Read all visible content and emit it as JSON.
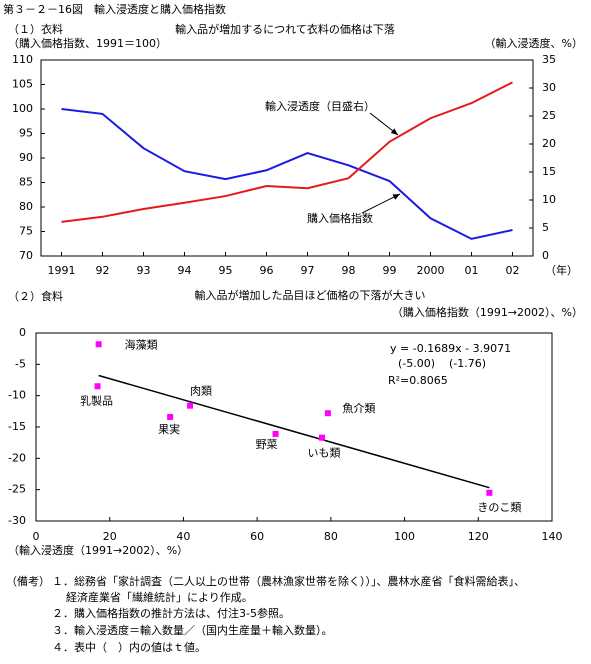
{
  "title": "第３－２－16図　輸入浸透度と購入価格指数",
  "chart_data": [
    {
      "type": "line",
      "title": "（１）衣料",
      "subtitle": "輸入品が増加するにつれて衣料の価格は下落",
      "ylabel": "（購入価格指数、1991＝100）",
      "y2label": "（輸入浸透度、%）",
      "xlabel": "（年）",
      "categories": [
        "1991",
        "92",
        "93",
        "94",
        "95",
        "96",
        "97",
        "98",
        "99",
        "2000",
        "01",
        "02"
      ],
      "ylim": [
        70,
        110
      ],
      "yticks": [
        70,
        75,
        80,
        85,
        90,
        95,
        100,
        105,
        110
      ],
      "y2lim": [
        0,
        35
      ],
      "y2ticks": [
        0,
        5,
        10,
        15,
        20,
        25,
        30,
        35
      ],
      "series": [
        {
          "name": "購入価格指数",
          "color": "#1a1ae6",
          "values": [
            100,
            99,
            92,
            87.3,
            85.7,
            87.5,
            91,
            88.5,
            85.3,
            77.7,
            73.5,
            75.3
          ]
        },
        {
          "name": "輸入浸透度（目盛右）",
          "color": "#e61a1a",
          "axis": "y2",
          "values": [
            6.1,
            7,
            8.4,
            9.5,
            10.7,
            12.5,
            12.1,
            13.9,
            20.4,
            24.6,
            27.3,
            31
          ]
        }
      ]
    },
    {
      "type": "scatter",
      "title": "（２）食料",
      "subtitle": "輸入品が増加した品目ほど価格の下落が大きい",
      "ylabel": "（購入価格指数（1991→2002）、%）",
      "xlabel": "（輸入浸透度（1991→2002）、%）",
      "xlim": [
        0,
        140
      ],
      "xticks": [
        0,
        20,
        40,
        60,
        80,
        100,
        120,
        140
      ],
      "ylim": [
        -30,
        0
      ],
      "yticks": [
        -30,
        -25,
        -20,
        -15,
        -10,
        -5,
        0
      ],
      "color": "#ff00ff",
      "labels": [
        "海藻類",
        "乳製品",
        "肉類",
        "果実",
        "野菜",
        "魚介類",
        "いも類",
        "きのこ類"
      ],
      "x": [
        17,
        16.7,
        41.8,
        36.4,
        65,
        79.2,
        77.6,
        123
      ],
      "values": [
        -1.8,
        -8.5,
        -11.6,
        -13.4,
        -16.1,
        -12.8,
        -16.7,
        -25.5
      ],
      "trendline": {
        "x": [
          17,
          123
        ],
        "values": [
          -6.78,
          -24.68
        ]
      },
      "annotations": [
        "y = -0.1689x - 3.9071",
        "(-5.00)    (-1.76)",
        "R²=0.8065"
      ]
    }
  ],
  "notes": {
    "label": "（備考）",
    "lines": [
      "１．総務省「家計調査（二人以上の世帯（農林漁家世帯を除く））」、農林水産省「食料需給表」、",
      "経済産業省「繊維統計」により作成。",
      "２．購入価格指数の推計方法は、付注3-5参照。",
      "３．輸入浸透度＝輸入数量／（国内生産量＋輸入数量）。",
      "４．表中（　）内の値はｔ値。"
    ]
  }
}
